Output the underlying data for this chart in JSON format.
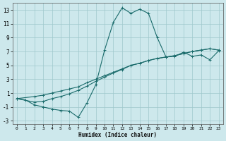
{
  "xlabel": "Humidex (Indice chaleur)",
  "xlim": [
    -0.5,
    23.5
  ],
  "ylim": [
    -3.5,
    14.0
  ],
  "xticks": [
    0,
    1,
    2,
    3,
    4,
    5,
    6,
    7,
    8,
    9,
    10,
    11,
    12,
    13,
    14,
    15,
    16,
    17,
    18,
    19,
    20,
    21,
    22,
    23
  ],
  "yticks": [
    -3,
    -1,
    1,
    3,
    5,
    7,
    9,
    11,
    13
  ],
  "background_color": "#cde8ec",
  "grid_color": "#9ec8cc",
  "line_color": "#1a6b6b",
  "line1_x": [
    0,
    1,
    2,
    3,
    4,
    5,
    6,
    7,
    8,
    9,
    10,
    11,
    12,
    13,
    14,
    15,
    16,
    17,
    18,
    19,
    20,
    21,
    22,
    23
  ],
  "line1_y": [
    0.2,
    0.0,
    -0.7,
    -1.0,
    -1.3,
    -1.5,
    -1.6,
    -2.5,
    -0.4,
    2.2,
    7.2,
    11.2,
    13.3,
    12.5,
    13.1,
    12.5,
    9.0,
    6.2,
    6.3,
    6.9,
    6.3,
    6.5,
    5.8,
    7.1
  ],
  "line2_x": [
    0,
    2,
    3,
    4,
    5,
    6,
    7,
    8,
    9,
    10,
    11,
    12,
    13,
    14,
    15,
    16,
    17,
    18,
    19,
    20,
    21,
    22,
    23
  ],
  "line2_y": [
    0.2,
    0.5,
    0.7,
    1.0,
    1.3,
    1.6,
    1.9,
    2.5,
    3.0,
    3.5,
    4.0,
    4.5,
    5.0,
    5.3,
    5.7,
    6.0,
    6.2,
    6.4,
    6.7,
    7.0,
    7.2,
    7.4,
    7.2
  ],
  "line3_x": [
    0,
    2,
    3,
    4,
    5,
    6,
    7,
    8,
    9,
    10,
    11,
    12,
    13,
    14,
    15,
    16,
    17,
    18,
    19,
    20,
    21,
    22,
    23
  ],
  "line3_y": [
    0.2,
    -0.3,
    -0.2,
    0.2,
    0.5,
    0.9,
    1.4,
    2.0,
    2.7,
    3.3,
    3.9,
    4.4,
    5.0,
    5.3,
    5.7,
    6.0,
    6.2,
    6.4,
    6.7,
    7.0,
    7.2,
    7.4,
    7.2
  ]
}
